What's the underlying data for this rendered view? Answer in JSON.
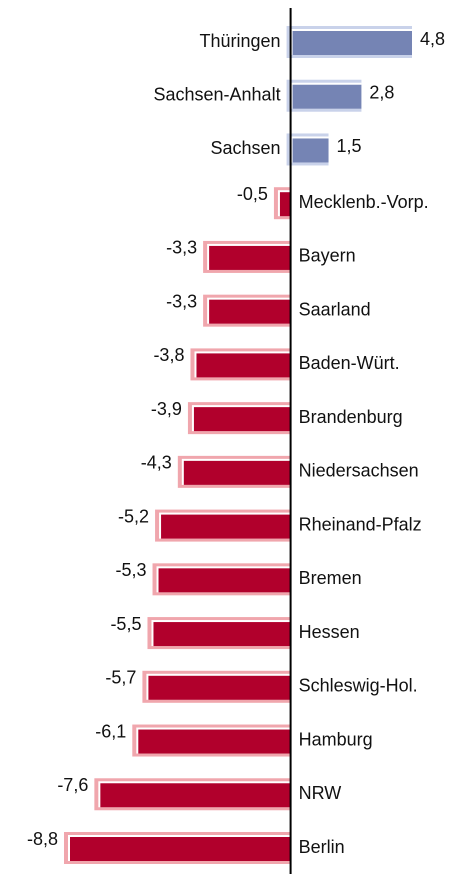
{
  "chart_data": {
    "type": "bar",
    "orientation": "horizontal",
    "categories": [
      "Thüringen",
      "Sachsen-Anhalt",
      "Sachsen",
      "Mecklenb.-Vorp.",
      "Bayern",
      "Saarland",
      "Baden-Würt.",
      "Brandenburg",
      "Niedersachsen",
      "Rheinand-Pfalz",
      "Bremen",
      "Hessen",
      "Schleswig-Hol.",
      "Hamburg",
      "NRW",
      "Berlin"
    ],
    "values": [
      4.8,
      2.8,
      1.5,
      -0.5,
      -3.3,
      -3.3,
      -3.8,
      -3.9,
      -4.3,
      -5.2,
      -5.3,
      -5.5,
      -5.7,
      -6.1,
      -7.6,
      -8.8
    ],
    "value_labels": [
      "4,8",
      "2,8",
      "1,5",
      "-0,5",
      "-3,3",
      "-3,3",
      "-3,8",
      "-3,9",
      "-4,3",
      "-5,2",
      "-5,3",
      "-5,5",
      "-5,7",
      "-6,1",
      "-7,6",
      "-8,8"
    ],
    "color_positive": "#7584b4",
    "color_negative": "#b1002c"
  }
}
